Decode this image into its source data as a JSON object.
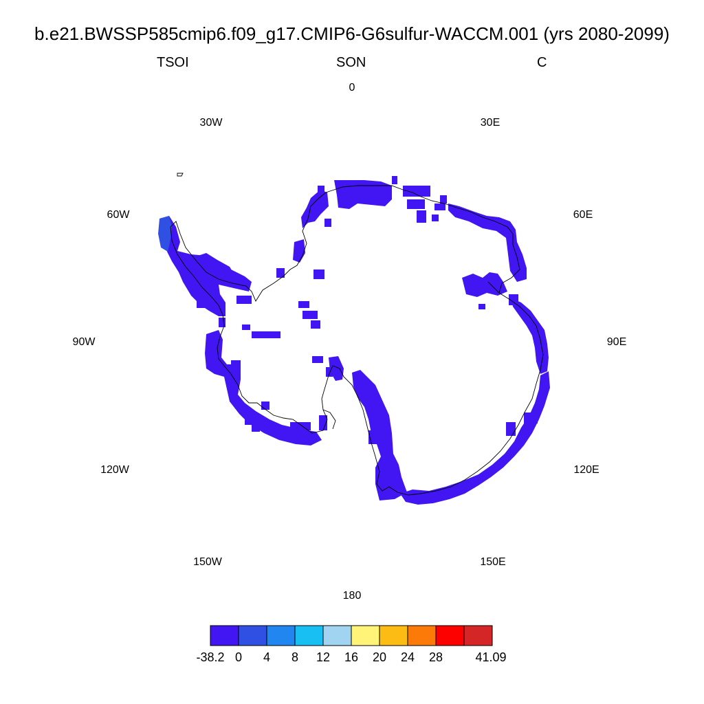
{
  "title": "b.e21.BWSSP585cmip6.f09_g17.CMIP6-G6sulfur-WACCM.001 (yrs 2080-2099)",
  "subtitle": {
    "left": "TSOI",
    "center": "SON",
    "right": "C"
  },
  "longitude_labels": [
    "0",
    "30E",
    "60E",
    "90E",
    "120E",
    "150E",
    "180",
    "150W",
    "120W",
    "90W",
    "60W",
    "30W"
  ],
  "colorbar": {
    "colors": [
      "#4116f2",
      "#3050e4",
      "#2186f0",
      "#17bff2",
      "#a0d4f0",
      "#fff478",
      "#fdbc14",
      "#fb7a08",
      "#fd0000",
      "#d42626"
    ],
    "labels": [
      "-38.2",
      "0",
      "4",
      "8",
      "12",
      "16",
      "20",
      "24",
      "28",
      "41.09"
    ]
  },
  "map": {
    "dominant_color": "#4116f2",
    "peninsula_tip_color": "#3050e4"
  }
}
